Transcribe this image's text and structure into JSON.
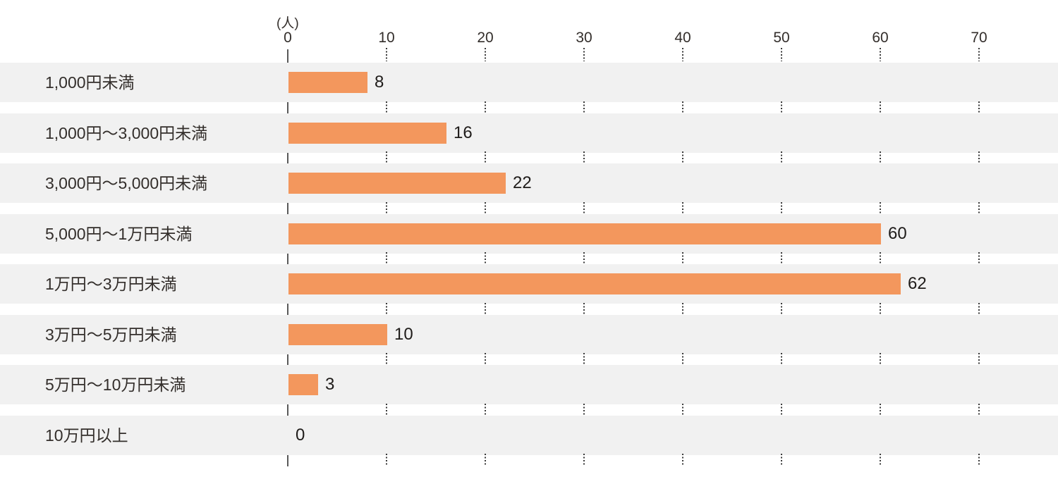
{
  "chart_data": {
    "type": "bar",
    "orientation": "horizontal",
    "title": "",
    "unit_label": "(人)",
    "categories": [
      "1,000円未満",
      "1,000円〜3,000円未満",
      "3,000円〜5,000円未満",
      "5,000円〜1万円未満",
      "1万円〜3万円未満",
      "3万円〜5万円未満",
      "5万円〜10万円未満",
      "10万円以上"
    ],
    "values": [
      8,
      16,
      22,
      60,
      62,
      10,
      3,
      0
    ],
    "x_ticks": [
      0,
      10,
      20,
      30,
      40,
      50,
      60,
      70
    ],
    "xlim": [
      0,
      70
    ],
    "xlabel": "",
    "ylabel": "",
    "legend": "none",
    "grid": "dotted-vertical-in-row-gaps",
    "bar_color": "#F3975D",
    "row_band_color": "#F1F1F1",
    "text_color": "#332E2B",
    "axis_line_color": "#595959",
    "grid_dot_color": "#3A3A3A"
  }
}
